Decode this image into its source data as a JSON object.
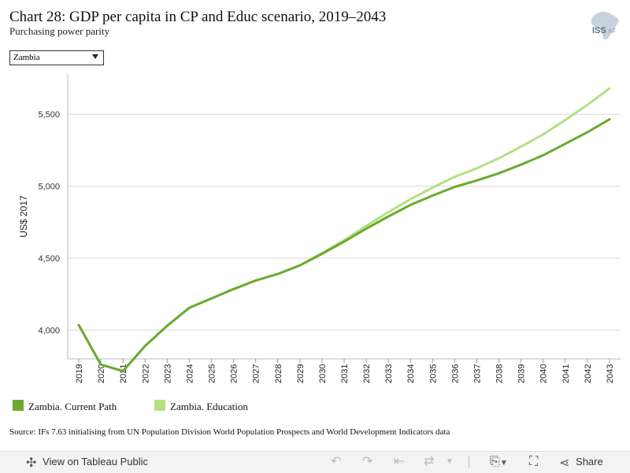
{
  "title": "Chart 28: GDP per capita in CP and Educ scenario, 2019–2043",
  "subtitle": "Purchasing power parity",
  "logo_text": "ISS AFRICA",
  "filter": {
    "selected": "Zambia"
  },
  "source": "Source: IFs 7.63 initialising from UN Population Division World Population Prospects and World Development Indicators data",
  "toolbar": {
    "view_label": "View on Tableau Public",
    "share_label": "Share",
    "icons": [
      "tableau-icon",
      "undo-icon",
      "redo-icon",
      "revert-icon",
      "refresh-icon",
      "download-icon",
      "fullscreen-icon",
      "share-icon"
    ]
  },
  "chart_data": {
    "type": "line",
    "ylabel": "US$ 2017",
    "xlabel": "",
    "categories": [
      "2019",
      "2020",
      "2021",
      "2022",
      "2023",
      "2024",
      "2025",
      "2026",
      "2027",
      "2028",
      "2029",
      "2030",
      "2031",
      "2032",
      "2033",
      "2034",
      "2035",
      "2036",
      "2037",
      "2038",
      "2039",
      "2040",
      "2041",
      "2042",
      "2043"
    ],
    "yticks": [
      4000,
      4500,
      5000,
      5500
    ],
    "ytick_labels": [
      "4,000",
      "4,500",
      "5,000",
      "5,500"
    ],
    "ylim": [
      3800,
      5780
    ],
    "grid": true,
    "legend_placement": "bottom",
    "series": [
      {
        "name": "Zambia. Current Path",
        "color": "#6aab2f",
        "values": [
          4035,
          3760,
          3715,
          3890,
          4030,
          4155,
          4220,
          4285,
          4345,
          4390,
          4450,
          4530,
          4615,
          4705,
          4790,
          4870,
          4935,
          4995,
          5040,
          5090,
          5150,
          5215,
          5295,
          5375,
          5465
        ]
      },
      {
        "name": "Zambia. Education",
        "color": "#b4e083",
        "values": [
          4035,
          3760,
          3715,
          3890,
          4030,
          4155,
          4220,
          4285,
          4345,
          4390,
          4450,
          4535,
          4625,
          4725,
          4820,
          4910,
          4990,
          5065,
          5125,
          5195,
          5275,
          5360,
          5460,
          5565,
          5680
        ]
      }
    ]
  }
}
